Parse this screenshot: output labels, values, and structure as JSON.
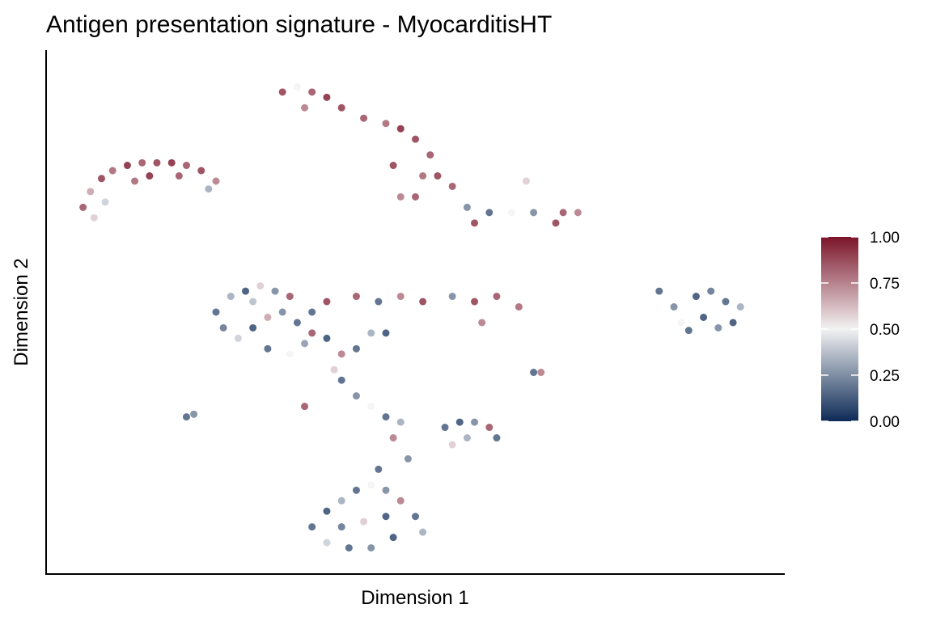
{
  "chart_data": {
    "type": "scatter",
    "title": "Antigen presentation signature - MyocarditisHT",
    "x_label": "Dimension 1",
    "y_label": "Dimension 2",
    "xlim": [
      0,
      100
    ],
    "ylim": [
      0,
      100
    ],
    "x": [
      5,
      6,
      7.5,
      9,
      11,
      13,
      15,
      17,
      19,
      21,
      23,
      22,
      6.5,
      8,
      14,
      18,
      12,
      32,
      34,
      36,
      38,
      40,
      43,
      46,
      48,
      50,
      52,
      51,
      53,
      55,
      47,
      48,
      50,
      57,
      58,
      60,
      63,
      66,
      70,
      72,
      69,
      35,
      65,
      23,
      25,
      27,
      29,
      31,
      33,
      24,
      26,
      28,
      30,
      32,
      34,
      36,
      30,
      33,
      35,
      38,
      40,
      42,
      44,
      46,
      39,
      28,
      36,
      38,
      42,
      45,
      48,
      51,
      55,
      58,
      61,
      64,
      59,
      83,
      85,
      88,
      90,
      92,
      94,
      89,
      91,
      87,
      93,
      86,
      66,
      67,
      19,
      20,
      35,
      40,
      42,
      44,
      46,
      48,
      47,
      49,
      45,
      54,
      56,
      58,
      60,
      61,
      57,
      55,
      36,
      38,
      40,
      42,
      44,
      46,
      48,
      50,
      51,
      47,
      44,
      41,
      38,
      43,
      46,
      40
    ],
    "y": [
      70,
      73,
      75.5,
      77,
      78,
      78.5,
      78.5,
      78.5,
      78,
      77,
      75,
      73.5,
      68,
      71,
      76,
      76,
      75,
      92,
      93,
      92,
      91,
      89,
      87,
      86,
      85,
      83,
      80,
      76,
      76,
      74,
      78,
      72,
      72,
      70,
      67,
      69,
      69,
      69,
      69,
      69,
      67,
      89,
      75,
      50,
      53,
      54,
      55,
      54,
      53,
      47,
      45,
      47,
      49,
      50,
      48,
      46,
      43,
      42,
      44,
      45,
      42,
      43,
      46,
      46,
      39,
      52,
      50,
      52,
      53,
      52,
      53,
      52,
      53,
      52,
      53,
      51,
      48,
      54,
      51,
      53,
      54,
      52,
      51,
      49,
      47,
      46.5,
      48,
      48,
      38.5,
      38.5,
      30,
      30.5,
      32,
      37,
      34,
      32,
      30,
      29,
      26,
      22,
      20,
      28,
      29,
      29,
      28,
      26,
      26,
      24.7,
      9,
      12,
      14,
      16,
      17,
      16,
      14,
      11,
      8,
      7,
      5,
      5,
      6,
      10,
      11,
      9
    ],
    "values": [
      0.9,
      0.7,
      0.95,
      0.85,
      1,
      0.9,
      0.95,
      1,
      0.9,
      0.95,
      0.8,
      0.3,
      0.6,
      0.4,
      1,
      0.9,
      0.85,
      0.95,
      0.5,
      0.9,
      1,
      0.95,
      0.9,
      0.85,
      1,
      0.95,
      0.9,
      0.85,
      0.95,
      0.9,
      0.95,
      0.8,
      0.9,
      0.2,
      0.95,
      0.1,
      0.5,
      0.2,
      0.9,
      0.8,
      0.95,
      0.8,
      0.6,
      0.1,
      0.3,
      0.05,
      0.6,
      0.2,
      0.9,
      0.15,
      0.4,
      0.05,
      0.7,
      0.2,
      0.1,
      0.9,
      0.1,
      0.5,
      0.25,
      0.05,
      0.8,
      0.1,
      0.3,
      0.05,
      0.6,
      0.35,
      0.1,
      0.95,
      0.9,
      0.1,
      0.8,
      0.95,
      0.2,
      0.95,
      0.9,
      0.85,
      0.8,
      0.1,
      0.2,
      0.05,
      0.15,
      0.1,
      0.3,
      0.05,
      0.2,
      0.1,
      0.05,
      0.5,
      0.1,
      0.8,
      0.1,
      0.2,
      0.9,
      0.1,
      0.2,
      0.5,
      0.1,
      0.3,
      0.8,
      0.2,
      0.1,
      0.1,
      0.05,
      0.2,
      0.9,
      0.1,
      0.3,
      0.6,
      0.1,
      0.05,
      0.3,
      0.1,
      0.5,
      0.2,
      0.8,
      0.1,
      0.3,
      0.05,
      0.2,
      0.1,
      0.4,
      0.6,
      0.05,
      0.15
    ],
    "colorbar": {
      "lim": [
        0,
        1
      ],
      "colors": [
        "#0d2a56",
        "#f2f2f2",
        "#7b1429"
      ],
      "ticks": [
        {
          "value": 0,
          "label": "0.00"
        },
        {
          "value": 0.25,
          "label": "0.25"
        },
        {
          "value": 0.5,
          "label": "0.50"
        },
        {
          "value": 0.75,
          "label": "0.75"
        },
        {
          "value": 1,
          "label": "1.00"
        }
      ]
    }
  }
}
